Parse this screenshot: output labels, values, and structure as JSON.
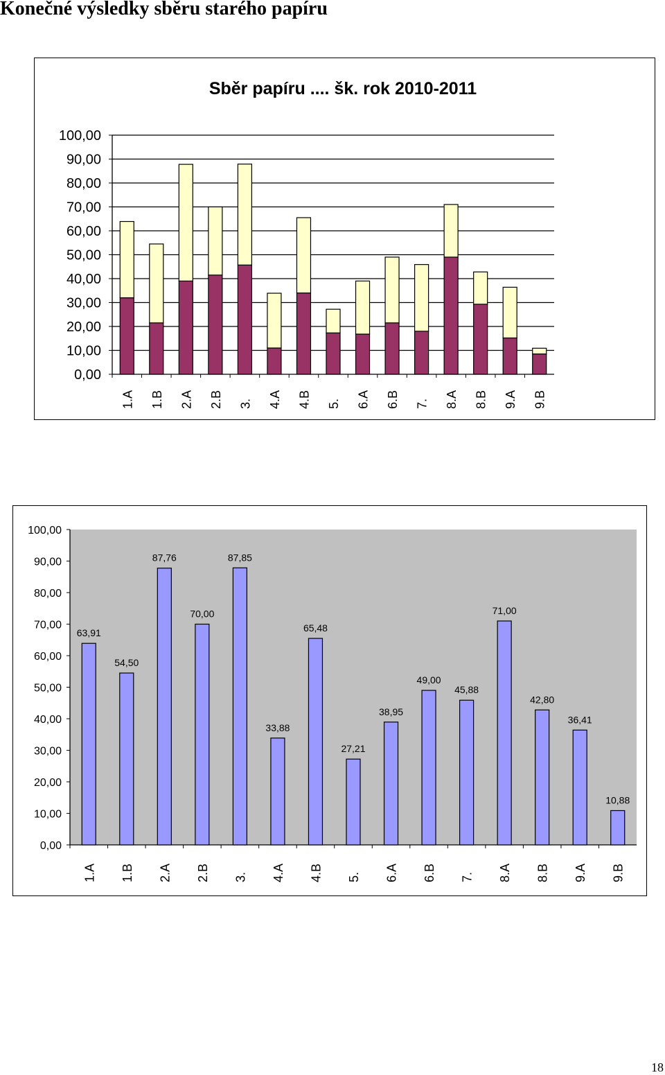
{
  "page": {
    "title": "Konečné výsledky sběru starého papíru",
    "page_number": "18"
  },
  "chart_data": [
    {
      "type": "bar",
      "stacked": true,
      "title": "Sběr papíru .... šk. rok 2010-2011",
      "xlabel": "",
      "ylabel": "",
      "ylim": [
        0,
        100
      ],
      "yticks": [
        "0,00",
        "10,00",
        "20,00",
        "30,00",
        "40,00",
        "50,00",
        "60,00",
        "70,00",
        "80,00",
        "90,00",
        "100,00"
      ],
      "grid": true,
      "legend": "none",
      "categories": [
        "1.A",
        "1.B",
        "2.A",
        "2.B",
        "3.",
        "4.A",
        "4.B",
        "5.",
        "6.A",
        "6.B",
        "7.",
        "8.A",
        "8.B",
        "9.A",
        "9.B"
      ],
      "series": [
        {
          "color": "#993366",
          "values": [
            32.0,
            21.5,
            39.0,
            41.5,
            45.7,
            11.0,
            34.0,
            17.3,
            16.8,
            21.5,
            18.0,
            49.0,
            29.3,
            15.2,
            8.5
          ]
        },
        {
          "color": "#FFFFCC",
          "values": [
            31.9,
            33.0,
            48.8,
            28.5,
            42.2,
            22.9,
            31.5,
            9.9,
            22.2,
            27.5,
            27.9,
            22.0,
            13.5,
            21.2,
            2.4
          ]
        }
      ]
    },
    {
      "type": "bar",
      "title": "",
      "xlabel": "",
      "ylabel": "",
      "ylim": [
        0,
        100
      ],
      "yticks": [
        "0,00",
        "10,00",
        "20,00",
        "30,00",
        "40,00",
        "50,00",
        "60,00",
        "70,00",
        "80,00",
        "90,00",
        "100,00"
      ],
      "grid": false,
      "legend": "none",
      "plot_background": "#C0C0C0",
      "bar_color": "#9999FF",
      "categories": [
        "1.A",
        "1.B",
        "2.A",
        "2.B",
        "3.",
        "4.A",
        "4.B",
        "5.",
        "6.A",
        "6.B",
        "7.",
        "8.A",
        "8.B",
        "9.A",
        "9.B"
      ],
      "values": [
        63.91,
        54.5,
        87.76,
        70.0,
        87.85,
        33.88,
        65.48,
        27.21,
        38.95,
        49.0,
        45.88,
        71.0,
        42.8,
        36.41,
        10.88
      ],
      "data_labels": [
        "63,91",
        "54,50",
        "87,76",
        "70,00",
        "87,85",
        "33,88",
        "65,48",
        "27,21",
        "38,95",
        "49,00",
        "45,88",
        "71,00",
        "42,80",
        "36,41",
        "10,88"
      ]
    }
  ]
}
